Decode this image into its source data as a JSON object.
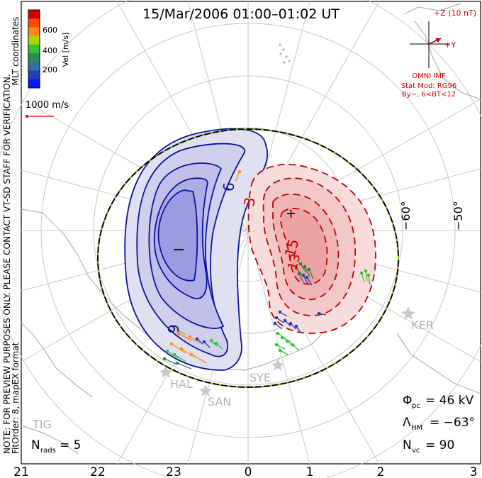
{
  "title": "15/Mar/2006 01:00–01:02 UT",
  "note_line1": "NOTE: FOR PREVIEW PURPOSES ONLY. PLEASE CONTACT VT-SD STAFF FOR VERIFICATION.",
  "note_line2": "FitOrder: 8, mapEX format",
  "coord_system": "MLT coordinates",
  "colorbar": {
    "label": "Vel [m/s]",
    "ticks": [
      "600",
      "400",
      "200"
    ],
    "colors": [
      "#d40000",
      "#ff4a00",
      "#ff8c1a",
      "#a6d800",
      "#33c233",
      "#2c8a57",
      "#2f6fa3",
      "#1f3fb8",
      "#0a14ff"
    ]
  },
  "scale_vector": "1000 m/s",
  "imf": {
    "bz_label": "+Z (10 nT)",
    "by_label": "+Y",
    "source": "OMNI IMF",
    "model_line1": "Stat Mod: RG96",
    "model_line2": "By−, 6<BT<12",
    "color": "#d40000"
  },
  "latitude_labels": [
    "−60°",
    "−50°"
  ],
  "mlt_labels": [
    "21",
    "22",
    "23",
    "0",
    "1",
    "2",
    "3"
  ],
  "stations": [
    "KER",
    "HAL",
    "SYE",
    "SAN",
    "TIG"
  ],
  "potential_labels": {
    "neg_marker": "−",
    "pos_marker": "+",
    "neg_contour_1": "6",
    "neg_contour_2": "9",
    "pos_contour_1": "3",
    "pos_contour_2": "15",
    "pos_contour_3": "13"
  },
  "stats": {
    "phi_pc_symbol": "Φ",
    "phi_pc_sub": "pc",
    "phi_pc_value": "= 46 kV",
    "lambda_hm_symbol": "Λ",
    "lambda_hm_sub": "HM",
    "lambda_hm_value": "= −63°",
    "n_vc_symbol": "N",
    "n_vc_sub": "vc",
    "n_vc_value": "= 90",
    "n_rads_symbol": "N",
    "n_rads_sub": "rads",
    "n_rads_value": "= 5"
  },
  "colors": {
    "negative_cell": "#0a14a0",
    "positive_cell": "#c80000",
    "hm_boundary": "#000000",
    "hm_boundary_ticks": "#7ad400",
    "grid": "#c8c8c8",
    "coast": "#b4b4b4"
  }
}
